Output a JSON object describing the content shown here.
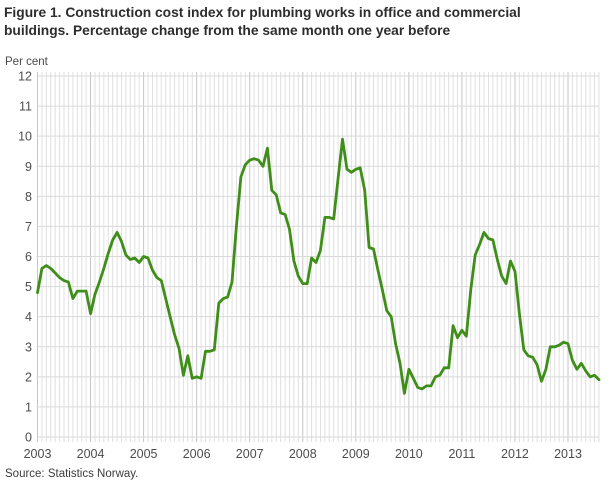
{
  "header": {
    "title_line1": "Figure 1. Construction cost index for plumbing works in office and commercial",
    "title_line2": "buildings. Percentage change from the same month one year before"
  },
  "footer": {
    "source": "Source: Statistics Norway."
  },
  "chart_data": {
    "type": "line",
    "title": "Figure 1. Construction cost index for plumbing works in office and commercial buildings. Percentage change from the same month one year before",
    "ylabel": "Per cent",
    "xlabel": "",
    "source": "Source: Statistics Norway.",
    "ylim": [
      0,
      12
    ],
    "y_ticks": [
      0,
      1,
      2,
      3,
      4,
      5,
      6,
      7,
      8,
      9,
      10,
      11,
      12
    ],
    "x_tick_labels": [
      "2003",
      "2004",
      "2005",
      "2006",
      "2007",
      "2008",
      "2009",
      "2010",
      "2011",
      "2012",
      "2013"
    ],
    "x_start": "2003-01",
    "frequency": "monthly",
    "grid": {
      "horizontal": true,
      "vertical_monthly": true,
      "vertical_yearly_darker": true,
      "legend": "none"
    },
    "colors": {
      "line": "#3e8e19",
      "grid_minor": "#e0e0e0",
      "grid_year": "#c5c5c5",
      "grid_horizontal": "#d9d9d9",
      "tick_text": "#4d4d4d"
    },
    "series": [
      {
        "name": "Construction cost index, plumbing works, YoY percentage change",
        "values": [
          4.8,
          5.6,
          5.7,
          5.6,
          5.45,
          5.3,
          5.2,
          5.15,
          4.6,
          4.85,
          4.85,
          4.85,
          4.1,
          4.75,
          5.15,
          5.6,
          6.1,
          6.55,
          6.8,
          6.5,
          6.05,
          5.9,
          5.95,
          5.8,
          6.0,
          5.95,
          5.55,
          5.3,
          5.2,
          4.6,
          4.0,
          3.4,
          2.95,
          2.05,
          2.7,
          1.95,
          2.0,
          1.95,
          2.85,
          2.85,
          2.9,
          4.45,
          4.6,
          4.65,
          5.15,
          7.0,
          8.65,
          9.05,
          9.2,
          9.25,
          9.2,
          9.0,
          9.6,
          8.2,
          8.05,
          7.45,
          7.4,
          6.9,
          5.85,
          5.35,
          5.1,
          5.1,
          5.95,
          5.8,
          6.2,
          7.3,
          7.3,
          7.25,
          8.6,
          9.9,
          8.9,
          8.8,
          8.9,
          8.95,
          8.2,
          6.3,
          6.25,
          5.55,
          4.9,
          4.2,
          4.0,
          3.1,
          2.45,
          1.45,
          2.25,
          1.95,
          1.65,
          1.6,
          1.7,
          1.7,
          2.0,
          2.05,
          2.3,
          2.3,
          3.7,
          3.3,
          3.55,
          3.35,
          4.9,
          6.05,
          6.4,
          6.8,
          6.6,
          6.55,
          5.9,
          5.35,
          5.1,
          5.85,
          5.5,
          4.1,
          2.9,
          2.7,
          2.65,
          2.4,
          1.85,
          2.25,
          3.0,
          3.0,
          3.05,
          3.15,
          3.1,
          2.55,
          2.25,
          2.45,
          2.2,
          2.0,
          2.05,
          1.9
        ]
      }
    ]
  }
}
